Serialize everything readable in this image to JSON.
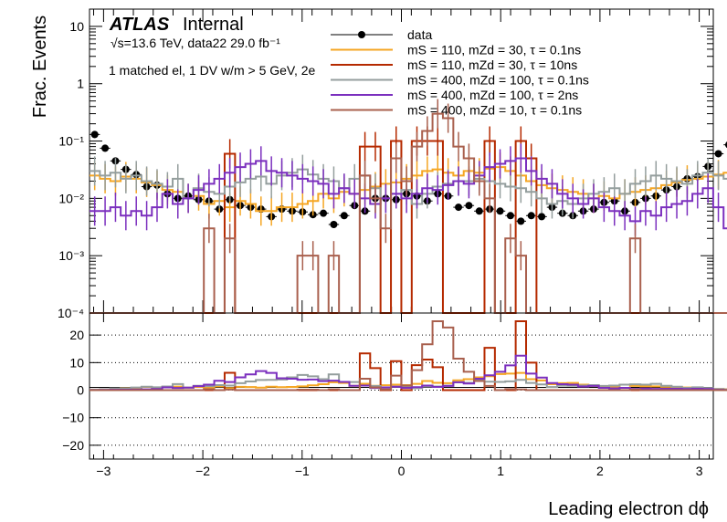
{
  "chart_data": {
    "type": "line",
    "histtype": "step",
    "experiment": "ATLAS",
    "label_status": "Internal",
    "energy_text": "√s=13.6 TeV, data22 29.0 fb⁻¹",
    "selection_text": "1 matched el, 1 DV w/m > 5 GeV, 2e",
    "xlabel": "Leading electron dϕ",
    "ylabel": "Frac. Events",
    "x_range": [
      -3.1416,
      3.1416
    ],
    "x_ticks": [
      -3,
      -2,
      -1,
      0,
      1,
      2,
      3
    ],
    "x_tick_labels": [
      "−3",
      "−2",
      "−1",
      "0",
      "1",
      "2",
      "3"
    ],
    "y_scale": "log",
    "y_range": [
      0.0001,
      20
    ],
    "y_ticks": [
      10,
      1,
      0.1,
      0.01,
      0.001,
      0.0001
    ],
    "y_tick_labels": [
      "10",
      "1",
      "10⁻¹",
      "10⁻²",
      "10⁻³",
      "10⁻⁴"
    ],
    "bin_edges_start": -3.1416,
    "bin_width": 0.1047,
    "series": [
      {
        "name": "data",
        "label": "data",
        "color": "#000000",
        "style": "points",
        "values": [
          0.13,
          0.075,
          0.045,
          0.032,
          0.026,
          0.016,
          0.017,
          0.012,
          0.01,
          0.011,
          0.0095,
          0.009,
          0.0065,
          0.0095,
          0.0075,
          0.007,
          0.0065,
          0.0048,
          0.0065,
          0.006,
          0.0058,
          0.0052,
          0.0055,
          0.0035,
          0.005,
          0.0075,
          0.006,
          0.01,
          0.01,
          0.0095,
          0.012,
          0.011,
          0.009,
          0.012,
          0.011,
          0.007,
          0.0075,
          0.006,
          0.0065,
          0.006,
          0.005,
          0.004,
          0.005,
          0.0048,
          0.007,
          0.0055,
          0.005,
          0.006,
          0.0065,
          0.0085,
          0.009,
          0.006,
          0.0085,
          0.01,
          0.011,
          0.014,
          0.016,
          0.022,
          0.024,
          0.036,
          0.06,
          0.086
        ]
      },
      {
        "name": "mS110_mZd30_tau0p1",
        "label": "mS = 110, mZd = 30, τ = 0.1ns",
        "color": "#f5a623",
        "style": "step",
        "values": [
          0.025,
          0.022,
          0.02,
          0.024,
          0.022,
          0.019,
          0.017,
          0.014,
          0.013,
          0.01,
          0.011,
          0.008,
          0.009,
          0.007,
          0.009,
          0.008,
          0.006,
          0.006,
          0.007,
          0.007,
          0.008,
          0.009,
          0.012,
          0.01,
          0.013,
          0.012,
          0.014,
          0.016,
          0.018,
          0.019,
          0.022,
          0.025,
          0.03,
          0.032,
          0.028,
          0.025,
          0.03,
          0.028,
          0.033,
          0.035,
          0.03,
          0.025,
          0.02,
          0.017,
          0.015,
          0.014,
          0.013,
          0.012,
          0.01,
          0.011,
          0.01,
          0.012,
          0.013,
          0.014,
          0.015,
          0.017,
          0.019,
          0.021,
          0.022,
          0.024,
          0.026,
          0.028
        ]
      },
      {
        "name": "mS110_mZd30_tau10",
        "label": "mS = 110, mZd = 30, τ = 10ns",
        "color": "#b52a00",
        "style": "step",
        "values": [
          0.0001,
          0.0001,
          0.0001,
          0.0001,
          0.0001,
          0.0001,
          0.0001,
          0.0001,
          0.0001,
          0.0001,
          0.0001,
          0.0001,
          0.0001,
          0.06,
          0.0001,
          0.0001,
          0.0001,
          0.0001,
          0.0001,
          0.0001,
          0.0001,
          0.0001,
          0.0001,
          0.0001,
          0.0001,
          0.0001,
          0.08,
          0.08,
          0.0001,
          0.1,
          0.0001,
          0.1,
          0.1,
          0.1,
          0.0001,
          0.0001,
          0.0001,
          0.0001,
          0.1,
          0.0001,
          0.0001,
          0.1,
          0.05,
          0.0001,
          0.0001,
          0.0001,
          0.0001,
          0.0001,
          0.0001,
          0.0001,
          0.0001,
          0.0001,
          0.0001,
          0.0001,
          0.0001,
          0.0001,
          0.0001,
          0.0001,
          0.0001,
          0.0001,
          0.0001,
          0.0001
        ]
      },
      {
        "name": "mS400_mZd100_tau0p1",
        "label": "mS = 400, mZd = 100, τ = 0.1ns",
        "color": "#949e9d",
        "style": "step",
        "values": [
          0.03,
          0.025,
          0.028,
          0.022,
          0.025,
          0.02,
          0.018,
          0.016,
          0.022,
          0.01,
          0.015,
          0.013,
          0.012,
          0.016,
          0.019,
          0.022,
          0.024,
          0.018,
          0.025,
          0.028,
          0.032,
          0.026,
          0.022,
          0.02,
          0.015,
          0.022,
          0.025,
          0.015,
          0.01,
          0.012,
          0.014,
          0.008,
          0.012,
          0.016,
          0.018,
          0.02,
          0.02,
          0.022,
          0.02,
          0.018,
          0.016,
          0.015,
          0.013,
          0.01,
          0.008,
          0.009,
          0.008,
          0.01,
          0.012,
          0.013,
          0.015,
          0.012,
          0.018,
          0.02,
          0.025,
          0.022,
          0.02,
          0.018,
          0.025,
          0.028,
          0.025,
          0.022
        ]
      },
      {
        "name": "mS400_mZd100_tau2",
        "label": "mS = 400, mZd = 100, τ = 2ns",
        "color": "#7b2fbe",
        "style": "step",
        "values": [
          0.006,
          0.006,
          0.007,
          0.005,
          0.006,
          0.005,
          0.007,
          0.012,
          0.008,
          0.01,
          0.014,
          0.018,
          0.022,
          0.028,
          0.035,
          0.04,
          0.045,
          0.03,
          0.028,
          0.025,
          0.022,
          0.02,
          0.018,
          0.012,
          0.015,
          0.012,
          0.01,
          0.008,
          0.01,
          0.012,
          0.01,
          0.012,
          0.015,
          0.014,
          0.017,
          0.02,
          0.018,
          0.025,
          0.035,
          0.04,
          0.045,
          0.05,
          0.03,
          0.022,
          0.018,
          0.012,
          0.01,
          0.008,
          0.01,
          0.007,
          0.006,
          0.005,
          0.004,
          0.006,
          0.005,
          0.007,
          0.008,
          0.009,
          0.012,
          0.015,
          0.007,
          0.003
        ]
      },
      {
        "name": "mS400_mZd10_tau0p1",
        "label": "mS = 400, mZd = 10, τ = 0.1ns",
        "color": "#a9604e",
        "style": "step",
        "values": [
          0.0001,
          0.0001,
          0.0001,
          0.0001,
          0.0001,
          0.0001,
          0.0001,
          0.0001,
          0.0001,
          0.0001,
          0.0001,
          0.003,
          0.0001,
          0.002,
          0.0001,
          0.0001,
          0.0001,
          0.0001,
          0.0001,
          0.0001,
          0.001,
          0.001,
          0.0001,
          0.001,
          0.0001,
          0.0001,
          0.025,
          0.01,
          0.003,
          0.05,
          0.02,
          0.08,
          0.15,
          0.3,
          0.25,
          0.08,
          0.05,
          0.02,
          0.01,
          0.0001,
          0.002,
          0.001,
          0.0001,
          0.0001,
          0.0001,
          0.0001,
          0.0001,
          0.0001,
          0.0001,
          0.0001,
          0.0001,
          0.0001,
          0.002,
          0.0001,
          0.0001,
          0.0001,
          0.0001,
          0.0001,
          0.0001,
          0.0001,
          0.0001,
          0.0001
        ]
      }
    ],
    "ratio_panel": {
      "y_range": [
        -25,
        28
      ],
      "y_ticks": [
        20,
        10,
        0,
        -10,
        -20
      ],
      "y_tick_labels": [
        "20",
        "10",
        "0",
        "−10",
        "−20"
      ],
      "grid": "dotted horizontal"
    }
  }
}
